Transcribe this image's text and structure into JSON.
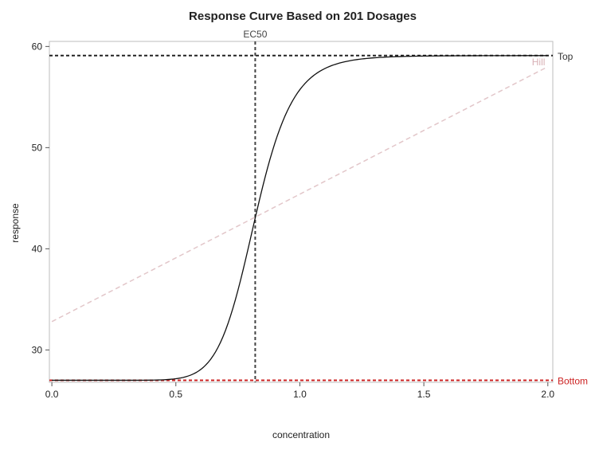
{
  "chart_data": {
    "type": "line",
    "title": "Response Curve Based on 201 Dosages",
    "xlabel": "concentration",
    "ylabel": "response",
    "xlim": [
      -0.01,
      2.02
    ],
    "ylim": [
      26.8,
      60.5
    ],
    "xticks": [
      0.0,
      0.5,
      1.0,
      1.5,
      2.0
    ],
    "xtick_labels": [
      "0.0",
      "0.5",
      "1.0",
      "1.5",
      "2.0"
    ],
    "yticks": [
      30,
      40,
      50,
      60
    ],
    "ytick_labels": [
      "30",
      "40",
      "50",
      "60"
    ],
    "grid": false,
    "curve": {
      "model": "hill",
      "n_points": 201,
      "x_range": [
        0.0,
        2.0
      ],
      "bottom": 27.0,
      "top": 59.1,
      "ec50": 0.82,
      "hill": 10.8,
      "color": "#111111"
    },
    "reference_lines": [
      {
        "label": "Top",
        "orientation": "horizontal",
        "value": 59.1,
        "color": "#222222",
        "label_color": "#333333"
      },
      {
        "label": "Bottom",
        "orientation": "horizontal",
        "value": 27.0,
        "color": "#cc2222",
        "label_color": "#cc2222"
      },
      {
        "label": "EC50",
        "orientation": "vertical",
        "value": 0.82,
        "color": "#444444",
        "label_color": "#444444"
      },
      {
        "label": "Hill",
        "orientation": "sloped",
        "from": [
          0.0,
          32.8
        ],
        "to": [
          2.0,
          58.0
        ],
        "color": "#e2c6c9",
        "label_color": "#d8b0b5"
      }
    ]
  }
}
